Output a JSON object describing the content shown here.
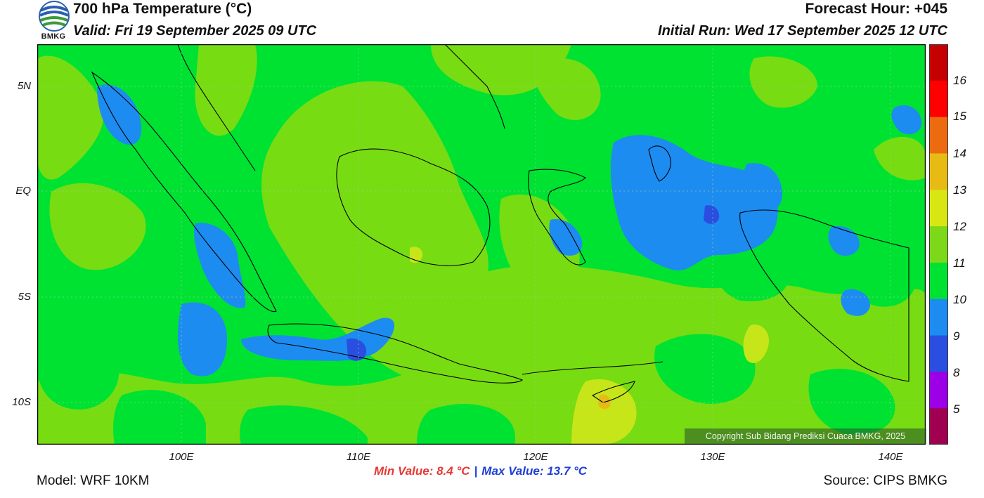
{
  "header": {
    "title": "700 hPa Temperature (°C)",
    "valid": "Valid: Fri 19 September 2025 09 UTC",
    "forecast_hour": "Forecast Hour: +045",
    "initial_run": "Initial Run: Wed 17 September 2025 12 UTC"
  },
  "logo": {
    "text": "BMKG"
  },
  "map": {
    "lat_labels": [
      "5N",
      "EQ",
      "5S",
      "10S"
    ],
    "lon_labels": [
      "100E",
      "110E",
      "120E",
      "130E",
      "140E"
    ],
    "copyright": "Copyright Sub Bidang Prediksi Cuaca BMKG, 2025",
    "colors": {
      "t10_11": "#00e232",
      "t11_12": "#78dc12",
      "t12_13": "#c6e61a",
      "t9_10": "#1d8cf0",
      "t8_9": "#2a4fe0"
    }
  },
  "colorbar": {
    "labels": [
      "16",
      "15",
      "14",
      "13",
      "12",
      "11",
      "10",
      "9",
      "8",
      "5"
    ],
    "colors": [
      "#c40000",
      "#ff0000",
      "#ec6a10",
      "#e8bb14",
      "#d8e614",
      "#7ed81a",
      "#00e232",
      "#1d8cf0",
      "#2a4fe0",
      "#9b00e6",
      "#a00050"
    ]
  },
  "stats": {
    "min": "Min Value: 8.4 °C",
    "max": "Max Value: 13.7 °C",
    "sep": "|"
  },
  "footer": {
    "model": "Model: WRF 10KM",
    "source": "Source: CIPS BMKG"
  }
}
